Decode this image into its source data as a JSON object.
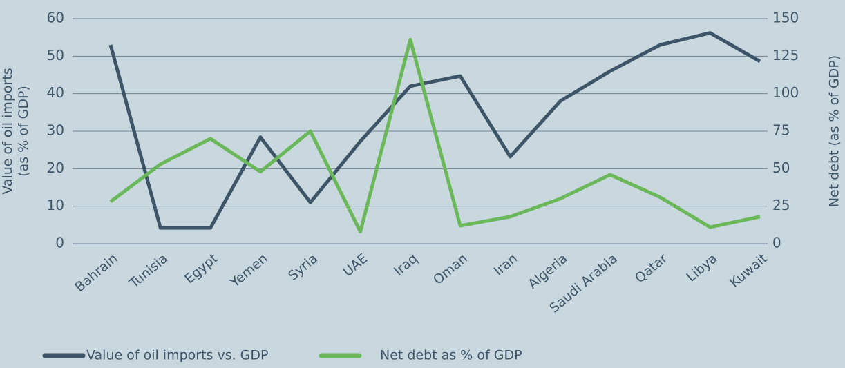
{
  "chart_data": {
    "type": "line",
    "categories": [
      "Bahrain",
      "Tunisia",
      "Egypt",
      "Yemen",
      "Syria",
      "UAE",
      "Iraq",
      "Oman",
      "Iran",
      "Algeria",
      "Saudi Arabia",
      "Qatar",
      "Libya",
      "Kuwait"
    ],
    "series": [
      {
        "name": "Value of oil imports vs. GDP",
        "color": "#3d5566",
        "values": [
          53,
          4.2,
          4.2,
          28.4,
          11,
          27.3,
          42,
          44.7,
          23.2,
          38,
          46,
          53,
          56.2,
          48.6
        ]
      },
      {
        "name": "Net debt as % of GDP",
        "color": "#6ab85a",
        "axis": "y2",
        "values": [
          28,
          53,
          70,
          48,
          75,
          8,
          136,
          12,
          18,
          30,
          46,
          31,
          11,
          18
        ]
      }
    ],
    "ylabel": "Value of oil imports\n(as % of GDP)",
    "y2label": "Net debt (as % of GDP)",
    "ylim": [
      0,
      60
    ],
    "yticks": [
      0,
      10,
      20,
      30,
      40,
      50,
      60
    ],
    "y2lim": [
      0,
      150
    ],
    "y2ticks": [
      0,
      25,
      50,
      75,
      100,
      125,
      150
    ],
    "grid": true,
    "legend": "bottom"
  }
}
